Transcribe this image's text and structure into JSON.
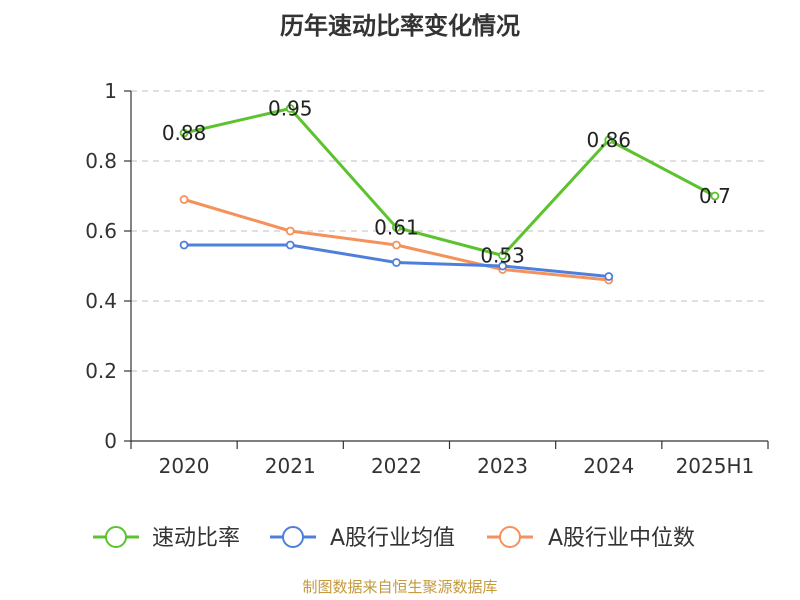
{
  "chart_data": {
    "type": "line",
    "title": "历年速动比率变化情况",
    "categories": [
      "2020",
      "2021",
      "2022",
      "2023",
      "2024",
      "2025H1"
    ],
    "ylim": [
      0,
      1
    ],
    "yticks": [
      0,
      0.2,
      0.4,
      0.6,
      0.8,
      1
    ],
    "grid": true,
    "legend_position": "bottom",
    "series": [
      {
        "name": "速动比率",
        "color": "#5cc22e",
        "values": [
          0.88,
          0.95,
          0.61,
          0.53,
          0.86,
          0.7
        ],
        "labels": [
          "0.88",
          "0.95",
          "0.61",
          "0.53",
          "0.86",
          "0.7"
        ]
      },
      {
        "name": "A股行业均值",
        "color": "#4e7fdc",
        "values": [
          0.56,
          0.56,
          0.51,
          0.5,
          0.47,
          null
        ]
      },
      {
        "name": "A股行业中位数",
        "color": "#f5915a",
        "values": [
          0.69,
          0.6,
          0.56,
          0.49,
          0.46,
          null
        ]
      }
    ]
  },
  "source_note": "制图数据来自恒生聚源数据库"
}
